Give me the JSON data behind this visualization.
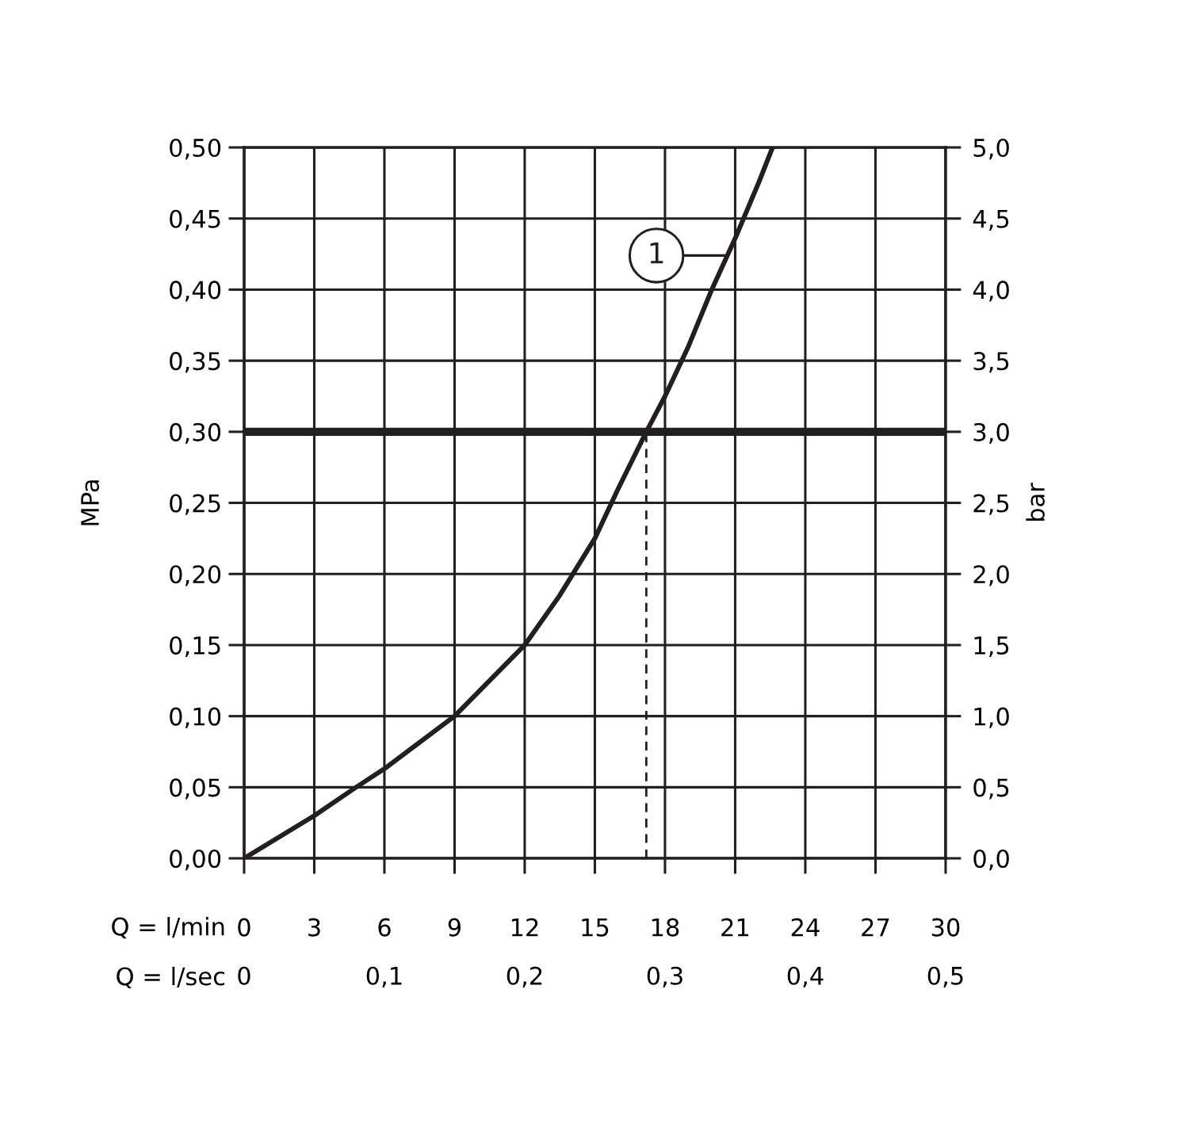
{
  "chart_data": {
    "type": "line",
    "xlabel": "Q = l/min",
    "x2label": "Q = l/sec",
    "ylabel": "MPa",
    "y2label": "bar",
    "xlim": [
      0,
      30
    ],
    "xticks": [
      0,
      3,
      6,
      9,
      12,
      15,
      18,
      21,
      24,
      27,
      30
    ],
    "x2lim": [
      0,
      0.5
    ],
    "x2ticks": [
      {
        "value": 0,
        "label": "0"
      },
      {
        "value": 0.1,
        "label": "0,1"
      },
      {
        "value": 0.2,
        "label": "0,2"
      },
      {
        "value": 0.3,
        "label": "0,3"
      },
      {
        "value": 0.4,
        "label": "0,4"
      },
      {
        "value": 0.5,
        "label": "0,5"
      }
    ],
    "ylim": [
      0,
      0.5
    ],
    "yticks": [
      {
        "value": 0,
        "label": "0,00"
      },
      {
        "value": 0.05,
        "label": "0,05"
      },
      {
        "value": 0.1,
        "label": "0,10"
      },
      {
        "value": 0.15,
        "label": "0,15"
      },
      {
        "value": 0.2,
        "label": "0,20"
      },
      {
        "value": 0.25,
        "label": "0,25"
      },
      {
        "value": 0.3,
        "label": "0,30"
      },
      {
        "value": 0.35,
        "label": "0,35"
      },
      {
        "value": 0.4,
        "label": "0,40"
      },
      {
        "value": 0.45,
        "label": "0,45"
      },
      {
        "value": 0.5,
        "label": "0,50"
      }
    ],
    "y2lim": [
      0,
      5
    ],
    "y2ticks": [
      {
        "value": 0,
        "label": "0,0"
      },
      {
        "value": 0.5,
        "label": "0,5"
      },
      {
        "value": 1,
        "label": "1,0"
      },
      {
        "value": 1.5,
        "label": "1,5"
      },
      {
        "value": 2,
        "label": "2,0"
      },
      {
        "value": 2.5,
        "label": "2,5"
      },
      {
        "value": 3,
        "label": "3,0"
      },
      {
        "value": 3.5,
        "label": "3,5"
      },
      {
        "value": 4,
        "label": "4,0"
      },
      {
        "value": 4.5,
        "label": "4,5"
      },
      {
        "value": 5,
        "label": "5,0"
      }
    ],
    "grid": true,
    "series": [
      {
        "color": "#231f20",
        "line_style": "solid",
        "x": [
          0,
          3,
          4.7,
          6,
          9,
          12,
          13.5,
          15,
          16,
          17.2,
          18,
          19,
          20,
          21,
          22,
          22.6
        ],
        "values": [
          0,
          0.03,
          0.049,
          0.063,
          0.1,
          0.15,
          0.185,
          0.225,
          0.26,
          0.3,
          0.325,
          0.36,
          0.4,
          0.436,
          0.475,
          0.5
        ]
      },
      {
        "color": "#231f20",
        "line_style": "dashed",
        "x": [
          17.2,
          17.2
        ],
        "values": [
          0,
          0.3
        ]
      }
    ],
    "ref_lines": [
      {
        "axis": "y",
        "value": 0.3,
        "color": "#231f20",
        "line_style": "solid"
      }
    ],
    "annotations": [
      {
        "text": "1",
        "x": 20.6,
        "y": 0.424
      }
    ]
  }
}
